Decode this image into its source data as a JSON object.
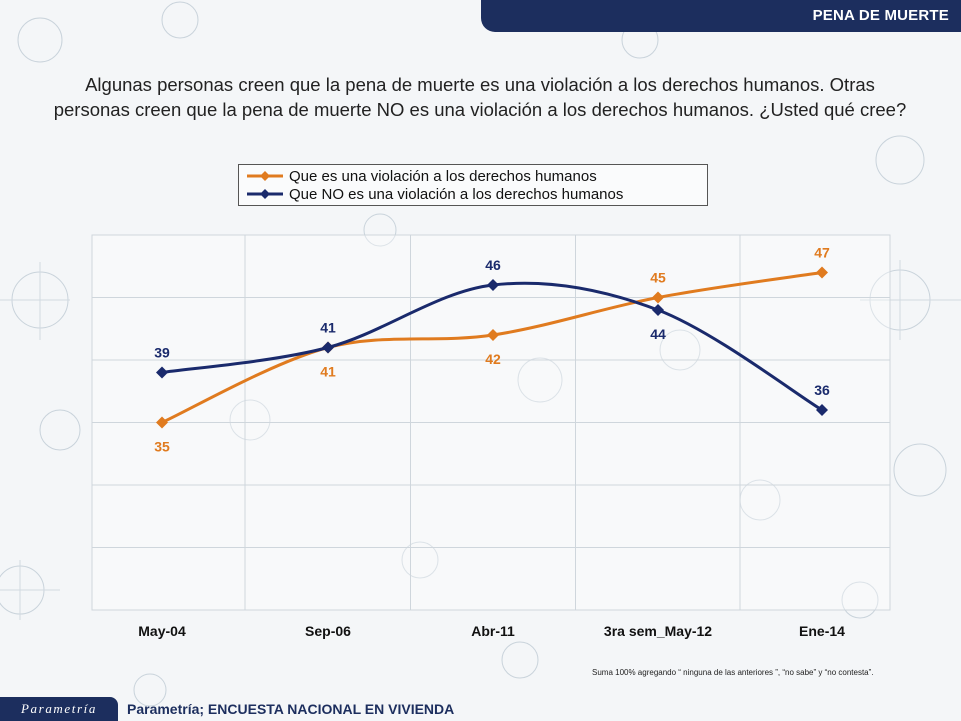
{
  "header": {
    "title": "PENA DE MUERTE"
  },
  "question": {
    "line1": "Algunas personas creen que la pena de muerte es una violación a los derechos humanos. Otras",
    "line2": "personas creen que la pena de muerte NO es una violación a los derechos humanos. ¿Usted qué cree?"
  },
  "colors": {
    "series1": "#e07b1f",
    "series2": "#1a2a6c",
    "header": "#1c2e5e"
  },
  "chart_data": {
    "type": "line",
    "categories": [
      "May-04",
      "Sep-06",
      "Abr-11",
      "3ra sem_May-12",
      "Ene-14"
    ],
    "series": [
      {
        "name": "Que es una violación a los derechos humanos",
        "values": [
          35,
          41,
          42,
          45,
          47
        ],
        "color": "#e07b1f",
        "marker": "diamond"
      },
      {
        "name": "Que NO es una violación a los derechos humanos",
        "values": [
          39,
          41,
          46,
          44,
          36
        ],
        "color": "#1a2a6c",
        "marker": "diamond"
      }
    ],
    "ylim": [
      20,
      50
    ],
    "smooth": true,
    "grid": true,
    "legend": "top-center",
    "data_labels": true
  },
  "footnote": "Suma 100%  agregando “ ninguna de las anteriores ”, “no sabe” y “no contesta”.",
  "footer": {
    "logo": "Parametría",
    "source": "Parametría; ENCUESTA NACIONAL  EN VIVIENDA"
  }
}
